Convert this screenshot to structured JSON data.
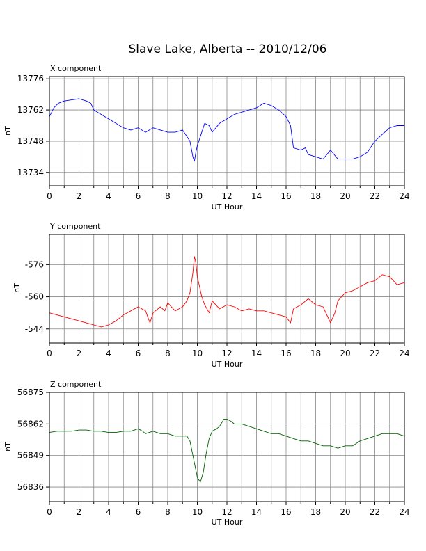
{
  "title": "Slave Lake, Alberta -- 2010/12/06",
  "chart_data": [
    {
      "type": "line",
      "panel_title": "X component",
      "xlabel": "UT Hour",
      "ylabel": "nT",
      "xlim": [
        0,
        24
      ],
      "ylim": [
        13728,
        13777
      ],
      "x_ticks": [
        "0",
        "2",
        "4",
        "6",
        "8",
        "10",
        "12",
        "14",
        "16",
        "18",
        "20",
        "22",
        "24"
      ],
      "y_ticks": [
        "13734",
        "13748",
        "13762",
        "13776"
      ],
      "grid": true,
      "color": "#0000ff",
      "series": [
        {
          "x": [
            0,
            0.3,
            0.6,
            1.0,
            1.5,
            2.0,
            2.5,
            2.8,
            3.0,
            3.5,
            4.0,
            4.5,
            5.0,
            5.5,
            6.0,
            6.5,
            7.0,
            7.5,
            8.0,
            8.5,
            9.0,
            9.5,
            9.7,
            9.8,
            9.9,
            10.0,
            10.5,
            10.8,
            11.0,
            11.5,
            12.0,
            12.5,
            13.0,
            13.5,
            14.0,
            14.5,
            15.0,
            15.5,
            16.0,
            16.3,
            16.5,
            17.0,
            17.3,
            17.5,
            18.0,
            18.5,
            19.0,
            19.5,
            20.0,
            20.5,
            21.0,
            21.5,
            22.0,
            22.5,
            23.0,
            23.5,
            24.0
          ],
          "y": [
            13759,
            13763,
            13765,
            13766,
            13766.5,
            13767,
            13766,
            13765,
            13762,
            13760,
            13758,
            13756,
            13754,
            13753,
            13754,
            13752,
            13754,
            13753,
            13752,
            13752,
            13753,
            13748,
            13741,
            13739,
            13743,
            13746,
            13756,
            13755,
            13752,
            13756,
            13758,
            13760,
            13761,
            13762,
            13763,
            13765,
            13764,
            13762,
            13759,
            13755,
            13745,
            13744,
            13745,
            13742,
            13741,
            13740,
            13744,
            13740,
            13740,
            13740,
            13741,
            13743,
            13748,
            13751,
            13754,
            13755,
            13755
          ]
        }
      ]
    },
    {
      "type": "line",
      "panel_title": "Y component",
      "xlabel": "UT Hour",
      "ylabel": "nT",
      "xlim": [
        0,
        24
      ],
      "ylim": [
        -591,
        -537
      ],
      "y_reversed": true,
      "x_ticks": [
        "0",
        "2",
        "4",
        "6",
        "8",
        "10",
        "12",
        "14",
        "16",
        "18",
        "20",
        "22",
        "24"
      ],
      "y_ticks": [
        "-544",
        "-560",
        "-576"
      ],
      "grid": true,
      "color": "#ff0000",
      "series": [
        {
          "x": [
            0,
            0.5,
            1.0,
            1.5,
            2.0,
            2.5,
            3.0,
            3.5,
            4.0,
            4.5,
            5.0,
            5.5,
            6.0,
            6.5,
            6.8,
            7.0,
            7.5,
            7.8,
            8.0,
            8.5,
            9.0,
            9.3,
            9.5,
            9.7,
            9.8,
            9.9,
            10.0,
            10.3,
            10.5,
            10.8,
            11.0,
            11.5,
            12.0,
            12.5,
            13.0,
            13.5,
            14.0,
            14.5,
            15.0,
            15.5,
            16.0,
            16.3,
            16.5,
            17.0,
            17.5,
            18.0,
            18.5,
            19.0,
            19.3,
            19.5,
            20.0,
            20.5,
            21.0,
            21.5,
            22.0,
            22.5,
            23.0,
            23.5,
            24.0
          ],
          "y": [
            -552,
            -551,
            -550,
            -549,
            -548,
            -547,
            -546,
            -545,
            -546,
            -548,
            -551,
            -553,
            -555,
            -553,
            -547,
            -552,
            -555,
            -553,
            -557,
            -553,
            -555,
            -558,
            -562,
            -572,
            -580,
            -577,
            -570,
            -560,
            -556,
            -552,
            -558,
            -554,
            -556,
            -555,
            -553,
            -554,
            -553,
            -553,
            -552,
            -551,
            -550,
            -547,
            -554,
            -556,
            -559,
            -556,
            -555,
            -547,
            -552,
            -558,
            -562,
            -563,
            -565,
            -567,
            -568,
            -571,
            -570,
            -566,
            -567
          ]
        }
      ]
    },
    {
      "type": "line",
      "panel_title": "Z component",
      "xlabel": "UT Hour",
      "ylabel": "nT",
      "xlim": [
        0,
        24
      ],
      "ylim": [
        56830,
        56875
      ],
      "x_ticks": [
        "0",
        "2",
        "4",
        "6",
        "8",
        "10",
        "12",
        "14",
        "16",
        "18",
        "20",
        "22",
        "24"
      ],
      "y_ticks": [
        "56836",
        "56849",
        "56862",
        "56875"
      ],
      "grid": true,
      "color": "#006000",
      "series": [
        {
          "x": [
            0,
            0.5,
            1.0,
            1.5,
            2.0,
            2.5,
            3.0,
            3.5,
            4.0,
            4.5,
            5.0,
            5.5,
            6.0,
            6.3,
            6.5,
            7.0,
            7.5,
            8.0,
            8.5,
            9.0,
            9.3,
            9.5,
            9.7,
            9.9,
            10.0,
            10.2,
            10.4,
            10.6,
            10.8,
            11.0,
            11.3,
            11.5,
            11.8,
            12.0,
            12.3,
            12.5,
            13.0,
            13.5,
            14.0,
            14.5,
            15.0,
            15.5,
            16.0,
            16.5,
            17.0,
            17.5,
            18.0,
            18.5,
            19.0,
            19.5,
            20.0,
            20.5,
            21.0,
            21.5,
            22.0,
            22.5,
            23.0,
            23.5,
            24.0
          ],
          "y": [
            56858.5,
            56859,
            56859,
            56859,
            56859.5,
            56859.5,
            56859,
            56859,
            56858.5,
            56858.5,
            56859,
            56859,
            56860,
            56859,
            56858,
            56859,
            56858,
            56858,
            56857,
            56857,
            56857,
            56855,
            56849,
            56843,
            56840,
            56838,
            56842,
            56850,
            56856,
            56859,
            56860,
            56861,
            56864,
            56864,
            56863,
            56862,
            56862,
            56861,
            56860,
            56859,
            56858,
            56858,
            56857,
            56856,
            56855,
            56855,
            56854,
            56853,
            56853,
            56852,
            56853,
            56853,
            56855,
            56856,
            56857,
            56858,
            56858,
            56858,
            56857
          ]
        }
      ]
    }
  ]
}
